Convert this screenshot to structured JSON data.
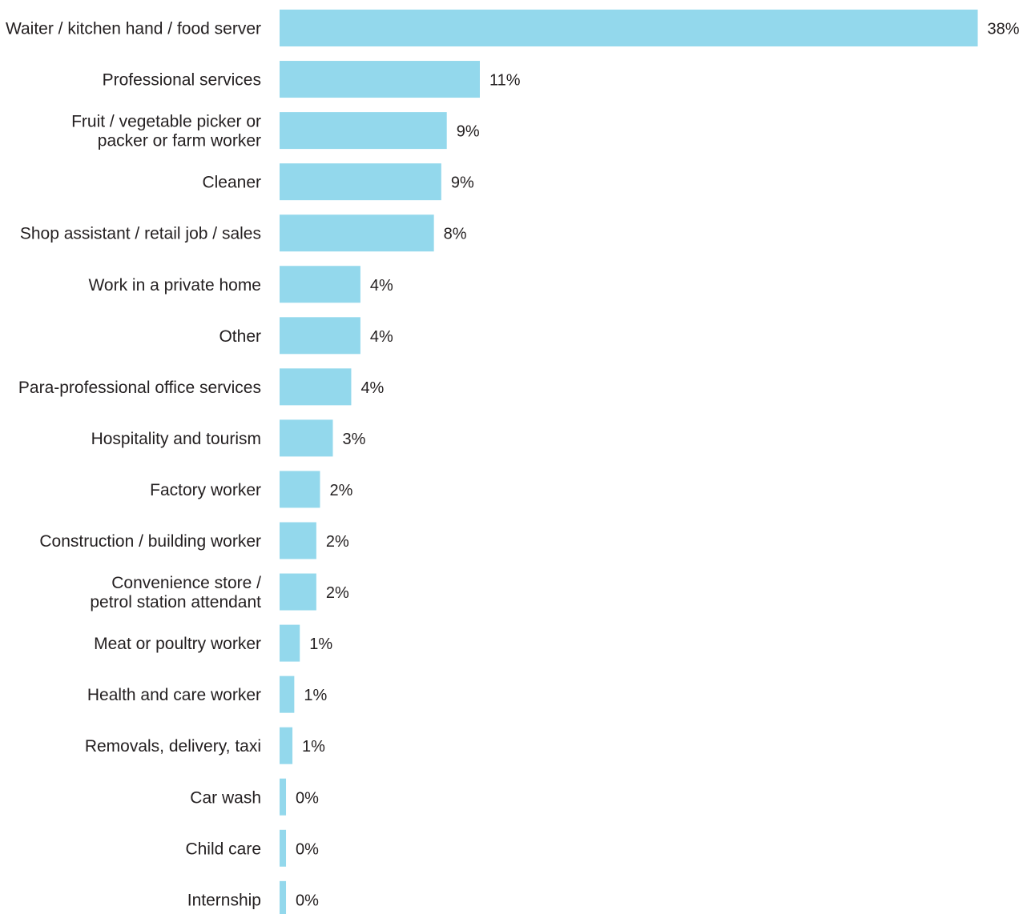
{
  "chart_data": {
    "type": "bar",
    "orientation": "horizontal",
    "bar_color": "#93d8ec",
    "text_color": "#231f20",
    "grid": false,
    "xlim": [
      0,
      38.5
    ],
    "categories": [
      [
        "Waiter / kitchen hand / food server"
      ],
      [
        "Professional services"
      ],
      [
        "Fruit / vegetable picker or",
        "packer or farm worker"
      ],
      [
        "Cleaner"
      ],
      [
        "Shop assistant / retail job / sales"
      ],
      [
        "Work in a private home"
      ],
      [
        "Other"
      ],
      [
        "Para-professional office services"
      ],
      [
        "Hospitality and tourism"
      ],
      [
        "Factory worker"
      ],
      [
        "Construction / building worker"
      ],
      [
        "Convenience store /",
        "petrol station attendant"
      ],
      [
        "Meat or poultry worker"
      ],
      [
        "Health and care worker"
      ],
      [
        "Removals, delivery, taxi"
      ],
      [
        "Car wash"
      ],
      [
        "Child care"
      ],
      [
        "Internship"
      ]
    ],
    "values": [
      38,
      11,
      9,
      9,
      8,
      4,
      4,
      4,
      3,
      2,
      2,
      2,
      1,
      1,
      1,
      0,
      0,
      0
    ],
    "display_values": [
      38,
      10.9,
      9.1,
      8.8,
      8.4,
      4.4,
      4.4,
      3.9,
      2.9,
      2.2,
      2.0,
      2.0,
      1.1,
      0.8,
      0.7,
      0.35,
      0.35,
      0.35
    ],
    "value_labels": [
      "38%",
      "11%",
      "9%",
      "9%",
      "8%",
      "4%",
      "4%",
      "4%",
      "3%",
      "2%",
      "2%",
      "2%",
      "1%",
      "1%",
      "1%",
      "0%",
      "0%",
      "0%"
    ]
  }
}
